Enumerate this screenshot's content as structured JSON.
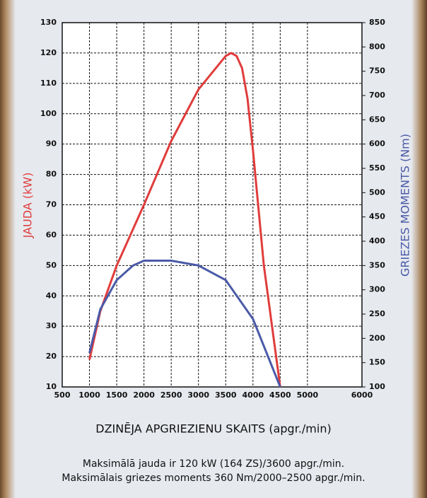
{
  "chart_data": {
    "type": "line",
    "x_label": "DZINĒJA APGRIEZIENU SKAITS (apgr./min)",
    "y_label": "JAUDA (kW)",
    "y2_label": "GRIEZES MOMENTS (Nm)",
    "notes": [
      "Maksimālā jauda ir 120 kW (164 ZS)/3600 apgr./min.",
      "Maksimālais griezes moments 360 Nm/2000–2500 apgr./min."
    ],
    "xlim": [
      500,
      6000
    ],
    "xticks": [
      500,
      1000,
      1500,
      2000,
      2500,
      3000,
      3500,
      4000,
      4500,
      5000,
      6000
    ],
    "ylim": [
      10,
      130
    ],
    "yticks": [
      10,
      20,
      30,
      40,
      50,
      60,
      70,
      80,
      90,
      100,
      110,
      120,
      130
    ],
    "y2lim": [
      100,
      850
    ],
    "y2ticks": [
      100,
      150,
      200,
      250,
      300,
      350,
      400,
      450,
      500,
      550,
      600,
      650,
      700,
      750,
      800,
      850
    ],
    "grid": true,
    "series": [
      {
        "name": "JAUDA (kW)",
        "color": "#e03c3c",
        "axis": "y",
        "x": [
          1000,
          1200,
          1500,
          2000,
          2500,
          3000,
          3500,
          3600,
          3700,
          3800,
          3900,
          4000,
          4200,
          4500
        ],
        "values": [
          19,
          35,
          50,
          70,
          91,
          108,
          119,
          120,
          119,
          115,
          105,
          88,
          50,
          10
        ]
      },
      {
        "name": "GRIEZES MOMENTS (Nm)",
        "color": "#4a5aa8",
        "axis": "y2",
        "x": [
          1000,
          1200,
          1500,
          1800,
          2000,
          2500,
          3000,
          3500,
          4000,
          4500
        ],
        "values": [
          170,
          260,
          320,
          350,
          360,
          360,
          350,
          320,
          240,
          100
        ]
      }
    ]
  }
}
